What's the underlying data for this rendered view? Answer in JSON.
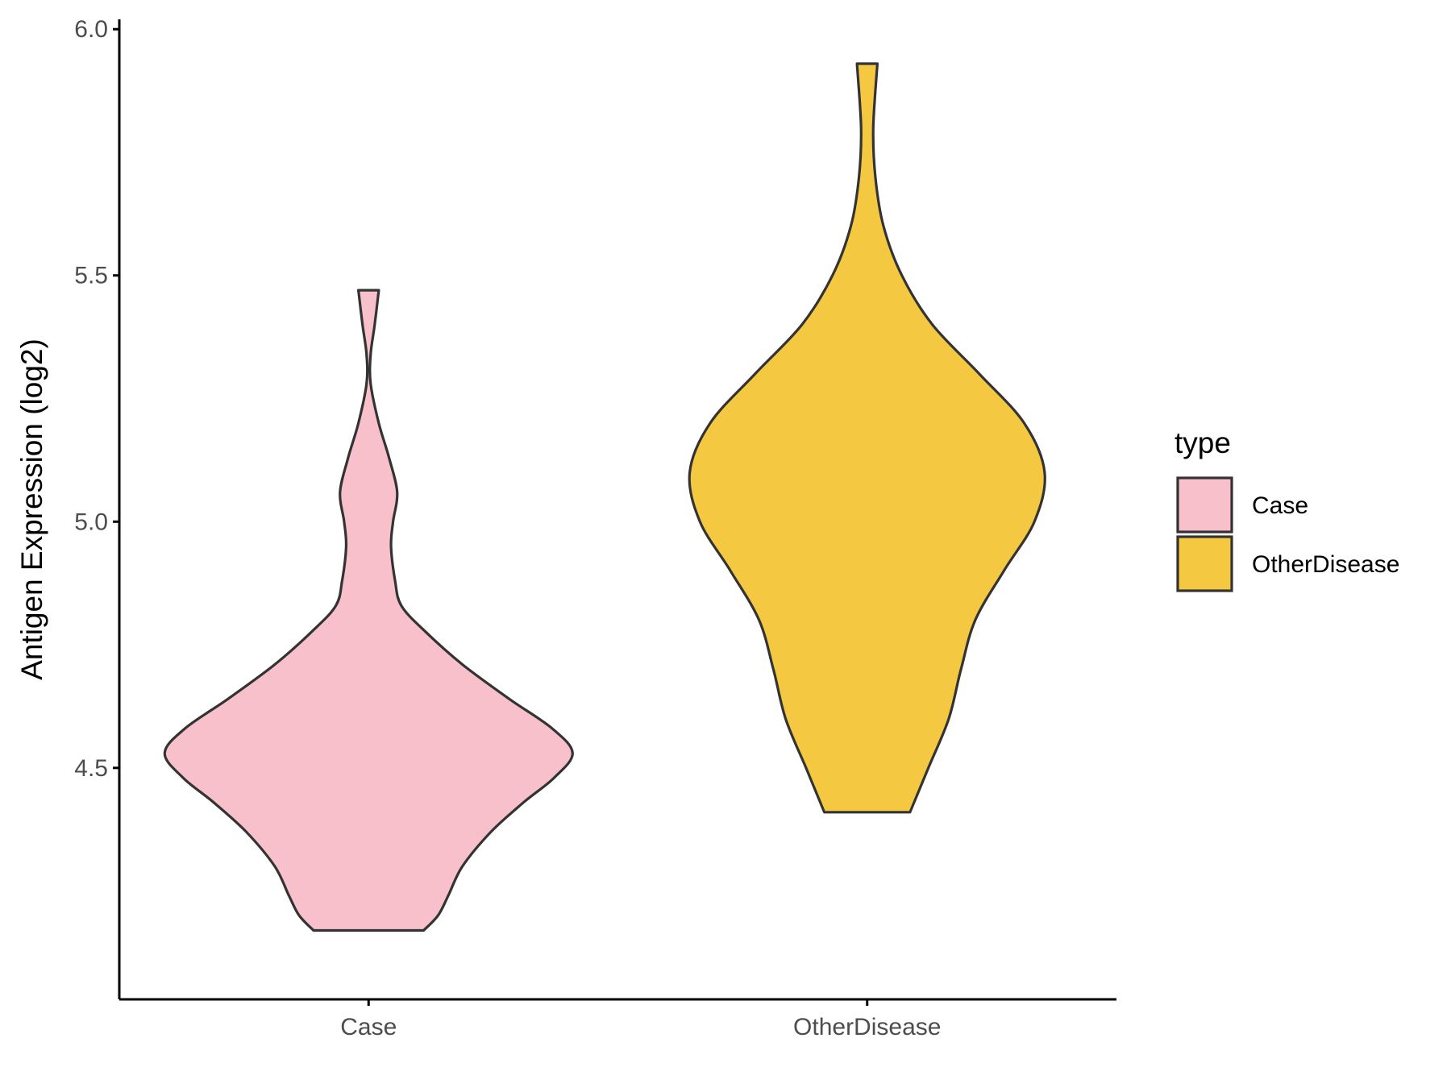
{
  "chart_data": {
    "type": "violin",
    "xlabel": "",
    "ylabel": "Antigen Expression (log2)",
    "ylim": [
      4.03,
      6.02
    ],
    "yticks": [
      "4.5",
      "5.0",
      "5.5",
      "6.0"
    ],
    "categories": [
      "Case",
      "OtherDisease"
    ],
    "grid": false,
    "legend": {
      "title": "type",
      "position": "right",
      "entries": [
        "Case",
        "OtherDisease"
      ]
    },
    "series": [
      {
        "name": "Case",
        "color": "#f7c0cb",
        "min": 4.17,
        "max": 5.47,
        "density": [
          [
            4.17,
            0.27
          ],
          [
            4.2,
            0.34
          ],
          [
            4.24,
            0.39
          ],
          [
            4.3,
            0.46
          ],
          [
            4.37,
            0.6
          ],
          [
            4.43,
            0.76
          ],
          [
            4.48,
            0.91
          ],
          [
            4.53,
            1.0
          ],
          [
            4.58,
            0.9
          ],
          [
            4.64,
            0.69
          ],
          [
            4.71,
            0.46
          ],
          [
            4.78,
            0.27
          ],
          [
            4.83,
            0.16
          ],
          [
            4.88,
            0.13
          ],
          [
            4.95,
            0.11
          ],
          [
            5.0,
            0.12
          ],
          [
            5.06,
            0.14
          ],
          [
            5.13,
            0.1
          ],
          [
            5.2,
            0.05
          ],
          [
            5.28,
            0.01
          ],
          [
            5.34,
            0.01
          ],
          [
            5.4,
            0.03
          ],
          [
            5.47,
            0.05
          ]
        ]
      },
      {
        "name": "OtherDisease",
        "color": "#f5c842",
        "min": 4.41,
        "max": 5.93,
        "density": [
          [
            4.41,
            0.21
          ],
          [
            4.5,
            0.3
          ],
          [
            4.6,
            0.4
          ],
          [
            4.7,
            0.46
          ],
          [
            4.8,
            0.53
          ],
          [
            4.9,
            0.67
          ],
          [
            5.0,
            0.82
          ],
          [
            5.1,
            0.87
          ],
          [
            5.2,
            0.77
          ],
          [
            5.3,
            0.55
          ],
          [
            5.4,
            0.32
          ],
          [
            5.5,
            0.17
          ],
          [
            5.6,
            0.08
          ],
          [
            5.7,
            0.04
          ],
          [
            5.8,
            0.03
          ],
          [
            5.93,
            0.05
          ]
        ]
      }
    ]
  }
}
